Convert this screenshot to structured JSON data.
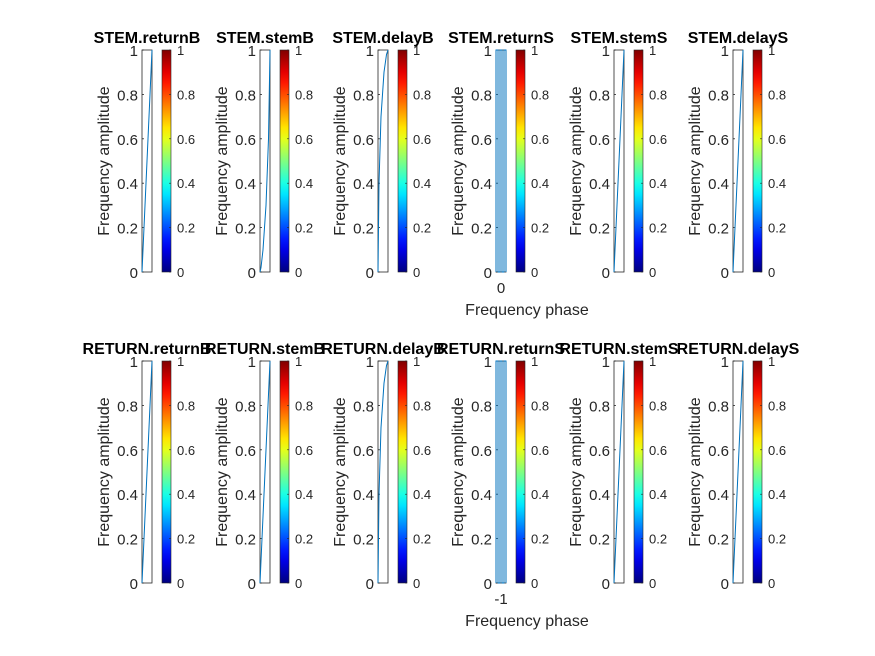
{
  "figure": {
    "background": "#ffffff"
  },
  "chart_data": [
    {
      "type": "line",
      "title": "STEM.returnB",
      "ylabel": "Frequency amplitude",
      "xlabel": "",
      "xtick_labels": [],
      "ylim": [
        0,
        1
      ],
      "yticks": [
        0,
        0.2,
        0.4,
        0.6,
        0.8,
        1
      ],
      "ytick_labels": [
        "0",
        "0.2",
        "0.4",
        "0.6",
        "0.8",
        "1"
      ],
      "colorbar": {
        "colormap": "jet",
        "range": [
          0,
          1
        ],
        "ticks": [
          0,
          0.2,
          0.4,
          0.6,
          0.8,
          1
        ],
        "tick_labels": [
          "0",
          "0.2",
          "0.4",
          "0.6",
          "0.8",
          "1"
        ]
      },
      "series": [
        {
          "color": "#0072bd",
          "x": [
            0,
            0.2,
            0.4,
            0.6,
            0.8,
            1
          ],
          "y": [
            0,
            0.2,
            0.4,
            0.6,
            0.8,
            1
          ]
        }
      ]
    },
    {
      "type": "line",
      "title": "STEM.stemB",
      "ylabel": "Frequency amplitude",
      "xlabel": "",
      "xtick_labels": [],
      "ylim": [
        0,
        1
      ],
      "yticks": [
        0,
        0.2,
        0.4,
        0.6,
        0.8,
        1
      ],
      "ytick_labels": [
        "0",
        "0.2",
        "0.4",
        "0.6",
        "0.8",
        "1"
      ],
      "colorbar": {
        "colormap": "jet",
        "range": [
          0,
          1
        ],
        "ticks": [
          0,
          0.2,
          0.4,
          0.6,
          0.8,
          1
        ],
        "tick_labels": [
          "0",
          "0.2",
          "0.4",
          "0.6",
          "0.8",
          "1"
        ]
      },
      "series": [
        {
          "color": "#0072bd",
          "x": [
            0,
            0.1,
            0.3,
            0.6,
            0.85,
            1
          ],
          "y": [
            0,
            0.02,
            0.1,
            0.3,
            0.6,
            1
          ]
        }
      ]
    },
    {
      "type": "line",
      "title": "STEM.delayB",
      "ylabel": "Frequency amplitude",
      "xlabel": "",
      "xtick_labels": [],
      "ylim": [
        0,
        1
      ],
      "yticks": [
        0,
        0.2,
        0.4,
        0.6,
        0.8,
        1
      ],
      "ytick_labels": [
        "0",
        "0.2",
        "0.4",
        "0.6",
        "0.8",
        "1"
      ],
      "colorbar": {
        "colormap": "jet",
        "range": [
          0,
          1
        ],
        "ticks": [
          0,
          0.2,
          0.4,
          0.6,
          0.8,
          1
        ],
        "tick_labels": [
          "0",
          "0.2",
          "0.4",
          "0.6",
          "0.8",
          "1"
        ]
      },
      "series": [
        {
          "color": "#0072bd",
          "x": [
            0,
            0.1,
            0.3,
            0.6,
            0.85,
            1
          ],
          "y": [
            0,
            0.4,
            0.7,
            0.9,
            0.98,
            1
          ]
        }
      ]
    },
    {
      "type": "line",
      "title": "STEM.returnS",
      "ylabel": "Frequency amplitude",
      "xlabel": "Frequency phase",
      "xtick_labels": [
        "0"
      ],
      "ylim": [
        0,
        1
      ],
      "yticks": [
        0,
        0.2,
        0.4,
        0.6,
        0.8,
        1
      ],
      "ytick_labels": [
        "0",
        "0.2",
        "0.4",
        "0.6",
        "0.8",
        "1"
      ],
      "colorbar": {
        "colormap": "jet",
        "range": [
          0,
          1
        ],
        "ticks": [
          0,
          0.2,
          0.4,
          0.6,
          0.8,
          1
        ],
        "tick_labels": [
          "0",
          "0.2",
          "0.4",
          "0.6",
          "0.8",
          "1"
        ]
      },
      "series": [
        {
          "color": "#0072bd",
          "x": [
            0,
            0,
            0.2,
            0.2,
            0.4,
            0.4,
            0.6,
            0.6,
            0.8,
            0.8,
            1,
            1
          ],
          "y": [
            0,
            1,
            1,
            0,
            0,
            1,
            1,
            0,
            0,
            1,
            1,
            0
          ]
        }
      ]
    },
    {
      "type": "line",
      "title": "STEM.stemS",
      "ylabel": "Frequency amplitude",
      "xlabel": "",
      "xtick_labels": [],
      "ylim": [
        0,
        1
      ],
      "yticks": [
        0,
        0.2,
        0.4,
        0.6,
        0.8,
        1
      ],
      "ytick_labels": [
        "0",
        "0.2",
        "0.4",
        "0.6",
        "0.8",
        "1"
      ],
      "colorbar": {
        "colormap": "jet",
        "range": [
          0,
          1
        ],
        "ticks": [
          0,
          0.2,
          0.4,
          0.6,
          0.8,
          1
        ],
        "tick_labels": [
          "0",
          "0.2",
          "0.4",
          "0.6",
          "0.8",
          "1"
        ]
      },
      "series": [
        {
          "color": "#0072bd",
          "x": [
            0,
            0.2,
            0.4,
            0.6,
            0.8,
            1
          ],
          "y": [
            0,
            0.2,
            0.4,
            0.6,
            0.8,
            1
          ]
        }
      ]
    },
    {
      "type": "line",
      "title": "STEM.delayS",
      "ylabel": "Frequency amplitude",
      "xlabel": "",
      "xtick_labels": [],
      "ylim": [
        0,
        1
      ],
      "yticks": [
        0,
        0.2,
        0.4,
        0.6,
        0.8,
        1
      ],
      "ytick_labels": [
        "0",
        "0.2",
        "0.4",
        "0.6",
        "0.8",
        "1"
      ],
      "colorbar": {
        "colormap": "jet",
        "range": [
          0,
          1
        ],
        "ticks": [
          0,
          0.2,
          0.4,
          0.6,
          0.8,
          1
        ],
        "tick_labels": [
          "0",
          "0.2",
          "0.4",
          "0.6",
          "0.8",
          "1"
        ]
      },
      "series": [
        {
          "color": "#0072bd",
          "x": [
            0,
            0.2,
            0.4,
            0.6,
            0.8,
            1
          ],
          "y": [
            0,
            0.2,
            0.4,
            0.6,
            0.8,
            1
          ]
        }
      ]
    },
    {
      "type": "line",
      "title": "RETURN.returnB",
      "ylabel": "Frequency amplitude",
      "xlabel": "",
      "xtick_labels": [],
      "ylim": [
        0,
        1
      ],
      "yticks": [
        0,
        0.2,
        0.4,
        0.6,
        0.8,
        1
      ],
      "ytick_labels": [
        "0",
        "0.2",
        "0.4",
        "0.6",
        "0.8",
        "1"
      ],
      "colorbar": {
        "colormap": "jet",
        "range": [
          0,
          1
        ],
        "ticks": [
          0,
          0.2,
          0.4,
          0.6,
          0.8,
          1
        ],
        "tick_labels": [
          "0",
          "0.2",
          "0.4",
          "0.6",
          "0.8",
          "1"
        ]
      },
      "series": [
        {
          "color": "#0072bd",
          "x": [
            0,
            0.2,
            0.4,
            0.6,
            0.8,
            1
          ],
          "y": [
            0,
            0.2,
            0.4,
            0.6,
            0.8,
            1
          ]
        }
      ]
    },
    {
      "type": "line",
      "title": "RETURN.stemB",
      "ylabel": "Frequency amplitude",
      "xlabel": "",
      "xtick_labels": [],
      "ylim": [
        0,
        1
      ],
      "yticks": [
        0,
        0.2,
        0.4,
        0.6,
        0.8,
        1
      ],
      "ytick_labels": [
        "0",
        "0.2",
        "0.4",
        "0.6",
        "0.8",
        "1"
      ],
      "colorbar": {
        "colormap": "jet",
        "range": [
          0,
          1
        ],
        "ticks": [
          0,
          0.2,
          0.4,
          0.6,
          0.8,
          1
        ],
        "tick_labels": [
          "0",
          "0.2",
          "0.4",
          "0.6",
          "0.8",
          "1"
        ]
      },
      "series": [
        {
          "color": "#0072bd",
          "x": [
            0,
            0.2,
            0.4,
            0.6,
            0.8,
            1
          ],
          "y": [
            0,
            0.2,
            0.4,
            0.6,
            0.8,
            1
          ]
        }
      ]
    },
    {
      "type": "line",
      "title": "RETURN.delayB",
      "ylabel": "Frequency amplitude",
      "xlabel": "",
      "xtick_labels": [],
      "ylim": [
        0,
        1
      ],
      "yticks": [
        0,
        0.2,
        0.4,
        0.6,
        0.8,
        1
      ],
      "ytick_labels": [
        "0",
        "0.2",
        "0.4",
        "0.6",
        "0.8",
        "1"
      ],
      "colorbar": {
        "colormap": "jet",
        "range": [
          0,
          1
        ],
        "ticks": [
          0,
          0.2,
          0.4,
          0.6,
          0.8,
          1
        ],
        "tick_labels": [
          "0",
          "0.2",
          "0.4",
          "0.6",
          "0.8",
          "1"
        ]
      },
      "series": [
        {
          "color": "#0072bd",
          "x": [
            0,
            0.1,
            0.3,
            0.6,
            0.85,
            1
          ],
          "y": [
            0,
            0.4,
            0.7,
            0.9,
            0.98,
            1
          ]
        }
      ]
    },
    {
      "type": "line",
      "title": "RETURN.returnS",
      "ylabel": "Frequency amplitude",
      "xlabel": "Frequency phase",
      "xtick_labels": [
        "-1"
      ],
      "ylim": [
        0,
        1
      ],
      "yticks": [
        0,
        0.2,
        0.4,
        0.6,
        0.8,
        1
      ],
      "ytick_labels": [
        "0",
        "0.2",
        "0.4",
        "0.6",
        "0.8",
        "1"
      ],
      "colorbar": {
        "colormap": "jet",
        "range": [
          0,
          1
        ],
        "ticks": [
          0,
          0.2,
          0.4,
          0.6,
          0.8,
          1
        ],
        "tick_labels": [
          "0",
          "0.2",
          "0.4",
          "0.6",
          "0.8",
          "1"
        ]
      },
      "series": [
        {
          "color": "#0072bd",
          "x": [
            0,
            0,
            0.2,
            0.2,
            0.4,
            0.4,
            0.6,
            0.6,
            0.8,
            0.8,
            1,
            1
          ],
          "y": [
            0,
            1,
            1,
            0,
            0,
            1,
            1,
            0,
            0,
            1,
            1,
            0
          ]
        }
      ]
    },
    {
      "type": "line",
      "title": "RETURN.stemS",
      "ylabel": "Frequency amplitude",
      "xlabel": "",
      "xtick_labels": [],
      "ylim": [
        0,
        1
      ],
      "yticks": [
        0,
        0.2,
        0.4,
        0.6,
        0.8,
        1
      ],
      "ytick_labels": [
        "0",
        "0.2",
        "0.4",
        "0.6",
        "0.8",
        "1"
      ],
      "colorbar": {
        "colormap": "jet",
        "range": [
          0,
          1
        ],
        "ticks": [
          0,
          0.2,
          0.4,
          0.6,
          0.8,
          1
        ],
        "tick_labels": [
          "0",
          "0.2",
          "0.4",
          "0.6",
          "0.8",
          "1"
        ]
      },
      "series": [
        {
          "color": "#0072bd",
          "x": [
            0,
            0.2,
            0.4,
            0.6,
            0.8,
            1
          ],
          "y": [
            0,
            0.2,
            0.4,
            0.6,
            0.8,
            1
          ]
        }
      ]
    },
    {
      "type": "line",
      "title": "RETURN.delayS",
      "ylabel": "Frequency amplitude",
      "xlabel": "",
      "xtick_labels": [],
      "ylim": [
        0,
        1
      ],
      "yticks": [
        0,
        0.2,
        0.4,
        0.6,
        0.8,
        1
      ],
      "ytick_labels": [
        "0",
        "0.2",
        "0.4",
        "0.6",
        "0.8",
        "1"
      ],
      "colorbar": {
        "colormap": "jet",
        "range": [
          0,
          1
        ],
        "ticks": [
          0,
          0.2,
          0.4,
          0.6,
          0.8,
          1
        ],
        "tick_labels": [
          "0",
          "0.2",
          "0.4",
          "0.6",
          "0.8",
          "1"
        ]
      },
      "series": [
        {
          "color": "#0072bd",
          "x": [
            0,
            0.2,
            0.4,
            0.6,
            0.8,
            1
          ],
          "y": [
            0,
            0.2,
            0.4,
            0.6,
            0.8,
            1
          ]
        }
      ]
    }
  ]
}
